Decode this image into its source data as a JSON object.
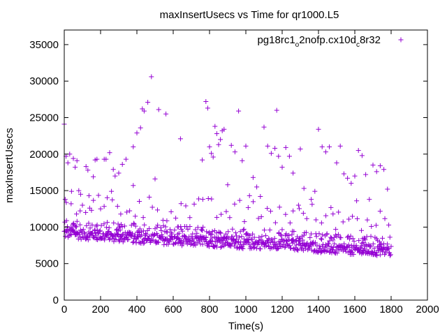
{
  "chart_data": {
    "type": "scatter",
    "title": "maxInsertUsecs vs Time for qr1000.L5",
    "xlabel": "Time(s)",
    "ylabel": "maxInsertUsecs",
    "xlim": [
      0,
      2000
    ],
    "ylim": [
      0,
      37000
    ],
    "xticks": [
      0,
      200,
      400,
      600,
      800,
      1000,
      1200,
      1400,
      1600,
      1800,
      2000
    ],
    "yticks": [
      0,
      5000,
      10000,
      15000,
      20000,
      25000,
      30000,
      35000
    ],
    "grid": false,
    "legend_position": "top-right",
    "marker": "plus",
    "series": [
      {
        "name_parts": [
          "pg18rc1",
          "o",
          "2nofp.cx10d",
          "c",
          "8r32"
        ],
        "color": "#9400d3",
        "baseline": {
          "x": [
            0,
            200,
            400,
            600,
            800,
            1000,
            1200,
            1400,
            1600,
            1800
          ],
          "y": [
            9200,
            8800,
            8500,
            8200,
            8000,
            7700,
            7700,
            7200,
            6800,
            6700
          ]
        },
        "outliers": {
          "x": [
            0,
            5,
            10,
            20,
            30,
            40,
            50,
            60,
            70,
            80,
            90,
            100,
            120,
            130,
            140,
            160,
            170,
            180,
            200,
            230,
            250,
            260,
            270,
            280,
            300,
            320,
            340,
            380,
            400,
            420,
            430,
            440,
            460,
            480,
            520,
            560,
            640,
            760,
            780,
            790,
            800,
            810,
            820,
            830,
            840,
            850,
            860,
            870,
            880,
            900,
            920,
            940,
            960,
            980,
            1000,
            1020,
            1040,
            1060,
            1080,
            1100,
            1120,
            1140,
            1160,
            1180,
            1200,
            1220,
            1240,
            1260,
            1300,
            1320,
            1360,
            1400,
            1420,
            1440,
            1460,
            1500,
            1520,
            1540,
            1560,
            1580,
            1600,
            1620,
            1640,
            1660,
            1700,
            1720,
            1740,
            1760,
            1780,
            380,
            500,
            150,
            220,
            1170,
            1290,
            1380,
            1480,
            1680,
            1610
          ],
          "y": [
            24100,
            13800,
            19700,
            18800,
            20000,
            14900,
            19400,
            18200,
            19100,
            15000,
            14500,
            13000,
            18300,
            17800,
            12600,
            16900,
            19200,
            19300,
            12500,
            19300,
            20200,
            14900,
            17900,
            17000,
            17400,
            18600,
            19300,
            21000,
            22900,
            23600,
            26200,
            25900,
            27100,
            30600,
            26100,
            25500,
            22100,
            19200,
            27200,
            26300,
            21000,
            20100,
            19600,
            23800,
            22800,
            21300,
            22000,
            23200,
            23400,
            15800,
            21200,
            20300,
            25900,
            19100,
            21100,
            14300,
            16800,
            15500,
            14200,
            23700,
            21100,
            20100,
            20800,
            19700,
            18200,
            20900,
            19700,
            17400,
            20700,
            15300,
            13800,
            23400,
            21000,
            20300,
            21000,
            18800,
            21100,
            17300,
            16700,
            16000,
            17000,
            20500,
            19800,
            17200,
            18500,
            17600,
            18400,
            17900,
            15200,
            15700,
            16600,
            12300,
            19300,
            26000,
            13000,
            14900,
            11800,
            13800,
            13600
          ]
        }
      }
    ]
  }
}
